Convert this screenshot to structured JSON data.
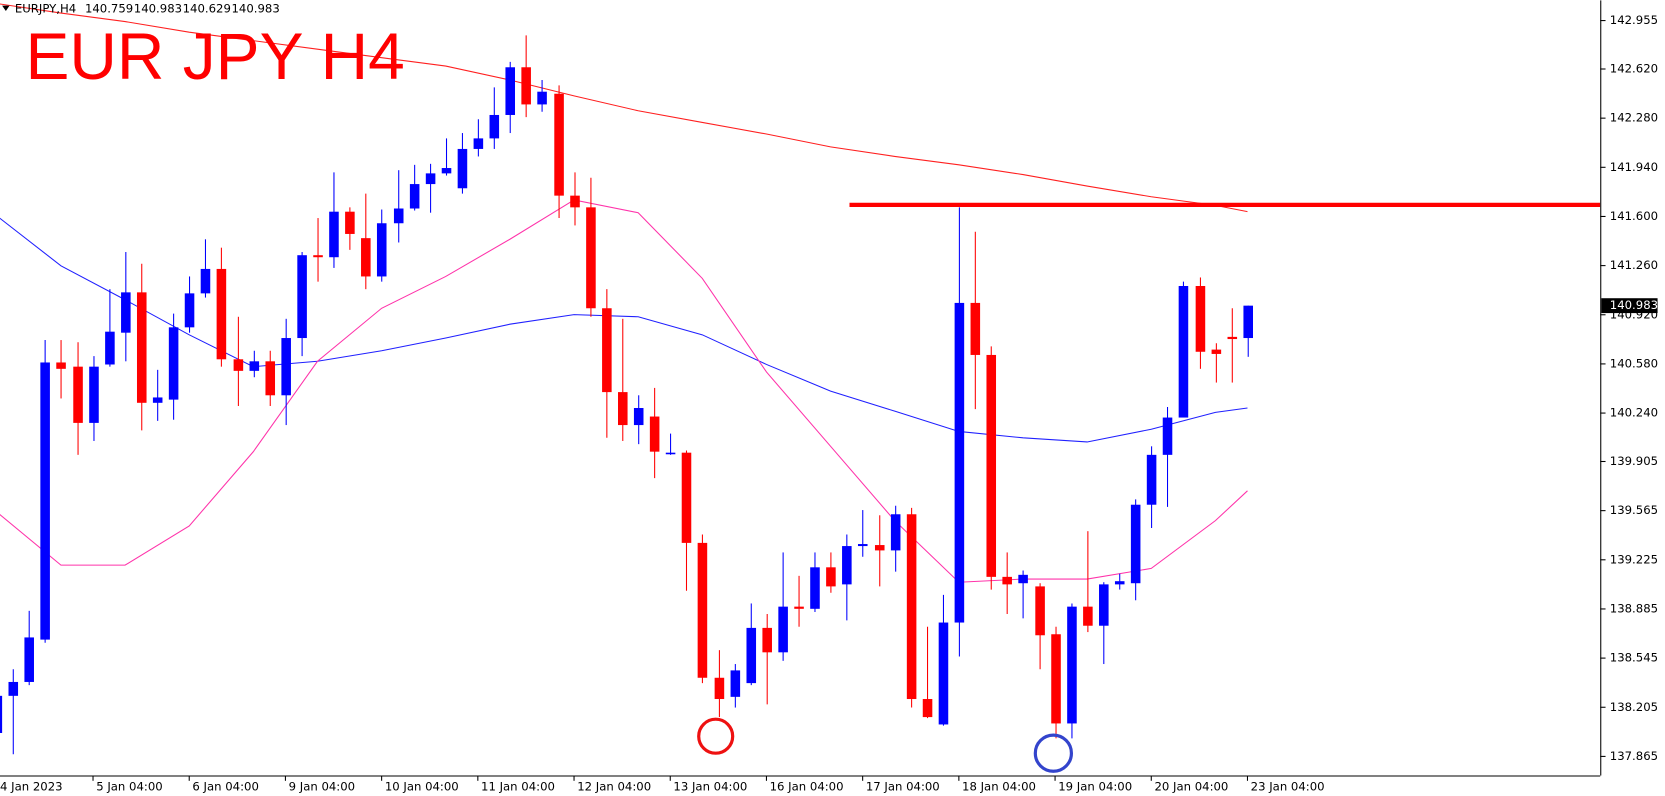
{
  "chart_data": {
    "type": "candlestick",
    "title": "EUR JPY H4",
    "symbol": "EURJPY,H4",
    "up_color": "#0000ff",
    "down_color": "#ff0000",
    "categories": [
      "4 Jan 2023",
      null,
      null,
      null,
      null,
      null,
      "5 Jan 04:00",
      null,
      null,
      null,
      null,
      null,
      "6 Jan 04:00",
      null,
      null,
      null,
      null,
      null,
      "9 Jan 04:00",
      null,
      null,
      null,
      null,
      null,
      "10 Jan 04:00",
      null,
      null,
      null,
      null,
      null,
      "11 Jan 04:00",
      null,
      null,
      null,
      null,
      null,
      "12 Jan 04:00",
      null,
      null,
      null,
      null,
      null,
      "13 Jan 04:00",
      null,
      null,
      null,
      null,
      null,
      "16 Jan 04:00",
      null,
      null,
      null,
      null,
      null,
      "17 Jan 04:00",
      null,
      null,
      null,
      null,
      null,
      "18 Jan 04:00",
      null,
      null,
      null,
      null,
      null,
      "19 Jan 04:00",
      null,
      null,
      null,
      null,
      null,
      "20 Jan 04:00",
      null,
      null,
      null,
      null,
      null,
      "23 Jan 04:00"
    ],
    "candles": {
      "open": [
        138.027,
        138.284,
        138.38,
        138.673,
        140.59,
        140.561,
        140.172,
        140.576,
        140.796,
        141.075,
        140.311,
        140.333,
        140.833,
        141.068,
        141.237,
        140.612,
        140.532,
        140.598,
        140.363,
        140.759,
        141.332,
        141.318,
        141.633,
        141.45,
        141.185,
        141.553,
        141.655,
        141.824,
        141.898,
        141.795,
        142.067,
        142.14,
        142.302,
        142.632,
        142.375,
        142.449,
        141.744,
        141.663,
        140.965,
        140.385,
        140.157,
        140.216,
        139.959,
        139.966,
        139.342,
        138.409,
        138.277,
        138.372,
        138.754,
        138.585,
        138.901,
        138.886,
        139.173,
        139.055,
        139.32,
        139.327,
        139.29,
        139.54,
        138.262,
        138.086,
        138.791,
        141.002,
        140.642,
        139.107,
        139.063,
        139.041,
        138.71,
        138.093,
        138.901,
        138.769,
        139.055,
        139.063,
        139.606,
        139.951,
        140.209,
        141.119,
        140.679,
        140.767,
        140.759
      ],
      "high": [
        138.394,
        138.468,
        138.872,
        140.745,
        140.745,
        140.73,
        140.634,
        141.097,
        141.354,
        141.273,
        140.539,
        140.928,
        141.185,
        141.442,
        141.384,
        140.906,
        140.671,
        140.671,
        140.892,
        141.354,
        141.589,
        141.905,
        141.663,
        141.758,
        141.648,
        141.92,
        141.957,
        141.964,
        142.14,
        142.177,
        142.272,
        142.493,
        142.669,
        142.853,
        142.544,
        142.507,
        141.905,
        141.868,
        141.097,
        140.892,
        140.363,
        140.414,
        140.098,
        139.981,
        139.4,
        138.6,
        138.504,
        138.923,
        138.85,
        139.276,
        139.114,
        139.276,
        139.276,
        139.4,
        139.569,
        139.533,
        139.599,
        139.584,
        138.762,
        138.982,
        141.663,
        141.494,
        140.701,
        139.276,
        139.151,
        139.063,
        138.762,
        138.923,
        139.423,
        139.07,
        139.129,
        139.643,
        140.01,
        140.282,
        141.149,
        141.178,
        140.723,
        140.965,
        140.983
      ],
      "low": [
        137.99,
        137.88,
        138.358,
        138.651,
        140.341,
        139.951,
        140.047,
        140.561,
        140.598,
        140.12,
        140.186,
        140.194,
        140.796,
        141.039,
        140.561,
        140.289,
        140.488,
        140.289,
        140.157,
        140.634,
        141.149,
        141.244,
        141.369,
        141.097,
        141.149,
        141.42,
        141.641,
        141.626,
        141.883,
        141.758,
        142.015,
        142.067,
        142.177,
        142.287,
        142.324,
        141.589,
        141.538,
        140.906,
        140.069,
        140.047,
        140.025,
        139.79,
        139.951,
        139.011,
        138.372,
        138.137,
        138.203,
        138.358,
        138.225,
        138.526,
        138.762,
        138.864,
        138.997,
        138.806,
        139.246,
        139.041,
        139.143,
        138.203,
        138.13,
        138.078,
        138.556,
        140.267,
        139.019,
        138.85,
        138.82,
        138.468,
        137.99,
        137.99,
        138.725,
        138.504,
        139.019,
        138.945,
        139.445,
        139.591,
        140.209,
        140.546,
        140.451,
        140.451,
        140.629
      ],
      "close": [
        138.284,
        138.38,
        138.688,
        140.59,
        140.546,
        140.172,
        140.561,
        140.803,
        141.075,
        140.311,
        140.348,
        140.833,
        141.068,
        141.237,
        140.612,
        140.532,
        140.598,
        140.363,
        140.759,
        141.332,
        141.318,
        141.633,
        141.479,
        141.185,
        141.553,
        141.655,
        141.824,
        141.898,
        141.935,
        142.067,
        142.14,
        142.302,
        142.632,
        142.375,
        142.463,
        141.744,
        141.663,
        140.965,
        140.385,
        140.157,
        140.275,
        139.973,
        139.966,
        139.342,
        138.409,
        138.262,
        138.46,
        138.754,
        138.585,
        138.901,
        138.886,
        139.173,
        139.041,
        139.32,
        139.334,
        139.29,
        139.54,
        138.262,
        138.137,
        138.791,
        141.002,
        140.642,
        139.107,
        139.055,
        139.121,
        138.703,
        138.093,
        138.901,
        138.769,
        139.055,
        139.077,
        139.606,
        139.951,
        140.209,
        141.119,
        140.664,
        140.649,
        140.752,
        140.983
      ]
    },
    "lines": [
      {
        "color": "#ff2020",
        "x": [
          0,
          4,
          8,
          12,
          16,
          20,
          24,
          28,
          32,
          36,
          40,
          44,
          48,
          52,
          56,
          60,
          64,
          68,
          72,
          76,
          78
        ],
        "values": [
          143.073,
          143.007,
          142.948,
          142.875,
          142.816,
          142.757,
          142.698,
          142.64,
          142.544,
          142.434,
          142.331,
          142.25,
          142.17,
          142.081,
          142.015,
          141.957,
          141.89,
          141.81,
          141.736,
          141.677,
          141.633
        ]
      },
      {
        "color": "#2020ff",
        "x": [
          0,
          4,
          8,
          12,
          16,
          20,
          24,
          28,
          32,
          36,
          40,
          44,
          48,
          52,
          56,
          60,
          64,
          68,
          72,
          76,
          78
        ],
        "values": [
          141.604,
          141.259,
          141.024,
          140.781,
          140.561,
          140.598,
          140.671,
          140.759,
          140.855,
          140.921,
          140.906,
          140.781,
          140.576,
          140.392,
          140.253,
          140.113,
          140.069,
          140.04,
          140.128,
          140.245,
          140.275
        ]
      },
      {
        "color": "#ff33aa",
        "x": [
          0,
          4,
          8,
          12,
          16,
          20,
          24,
          28,
          32,
          36,
          40,
          44,
          48,
          52,
          56,
          60,
          64,
          68,
          72,
          76,
          78
        ],
        "values": [
          139.555,
          139.188,
          139.188,
          139.459,
          139.973,
          140.598,
          140.965,
          141.185,
          141.442,
          141.714,
          141.626,
          141.171,
          140.524,
          140.01,
          139.496,
          139.07,
          139.092,
          139.092,
          139.165,
          139.496,
          139.702
        ]
      }
    ],
    "level": {
      "color": "#ff0000",
      "value": 141.68
    },
    "ylim": [
      137.733,
      143.095
    ],
    "yticks": [
      142.955,
      {
        "value": 142.62,
        "label": "142.620"
      },
      {
        "value": 142.28,
        "label": "142.280"
      },
      {
        "value": 141.94,
        "label": "141.940"
      },
      {
        "value": 141.6,
        "label": "141.600"
      },
      {
        "value": 141.26,
        "label": "141.260"
      },
      {
        "value": 140.92,
        "label": "140.920"
      },
      {
        "value": 140.58,
        "label": "140.580"
      },
      {
        "value": 140.24,
        "label": "140.240"
      },
      139.905,
      139.565,
      139.225,
      138.885,
      138.545,
      138.205,
      137.865
    ],
    "grid": false
  }
}
